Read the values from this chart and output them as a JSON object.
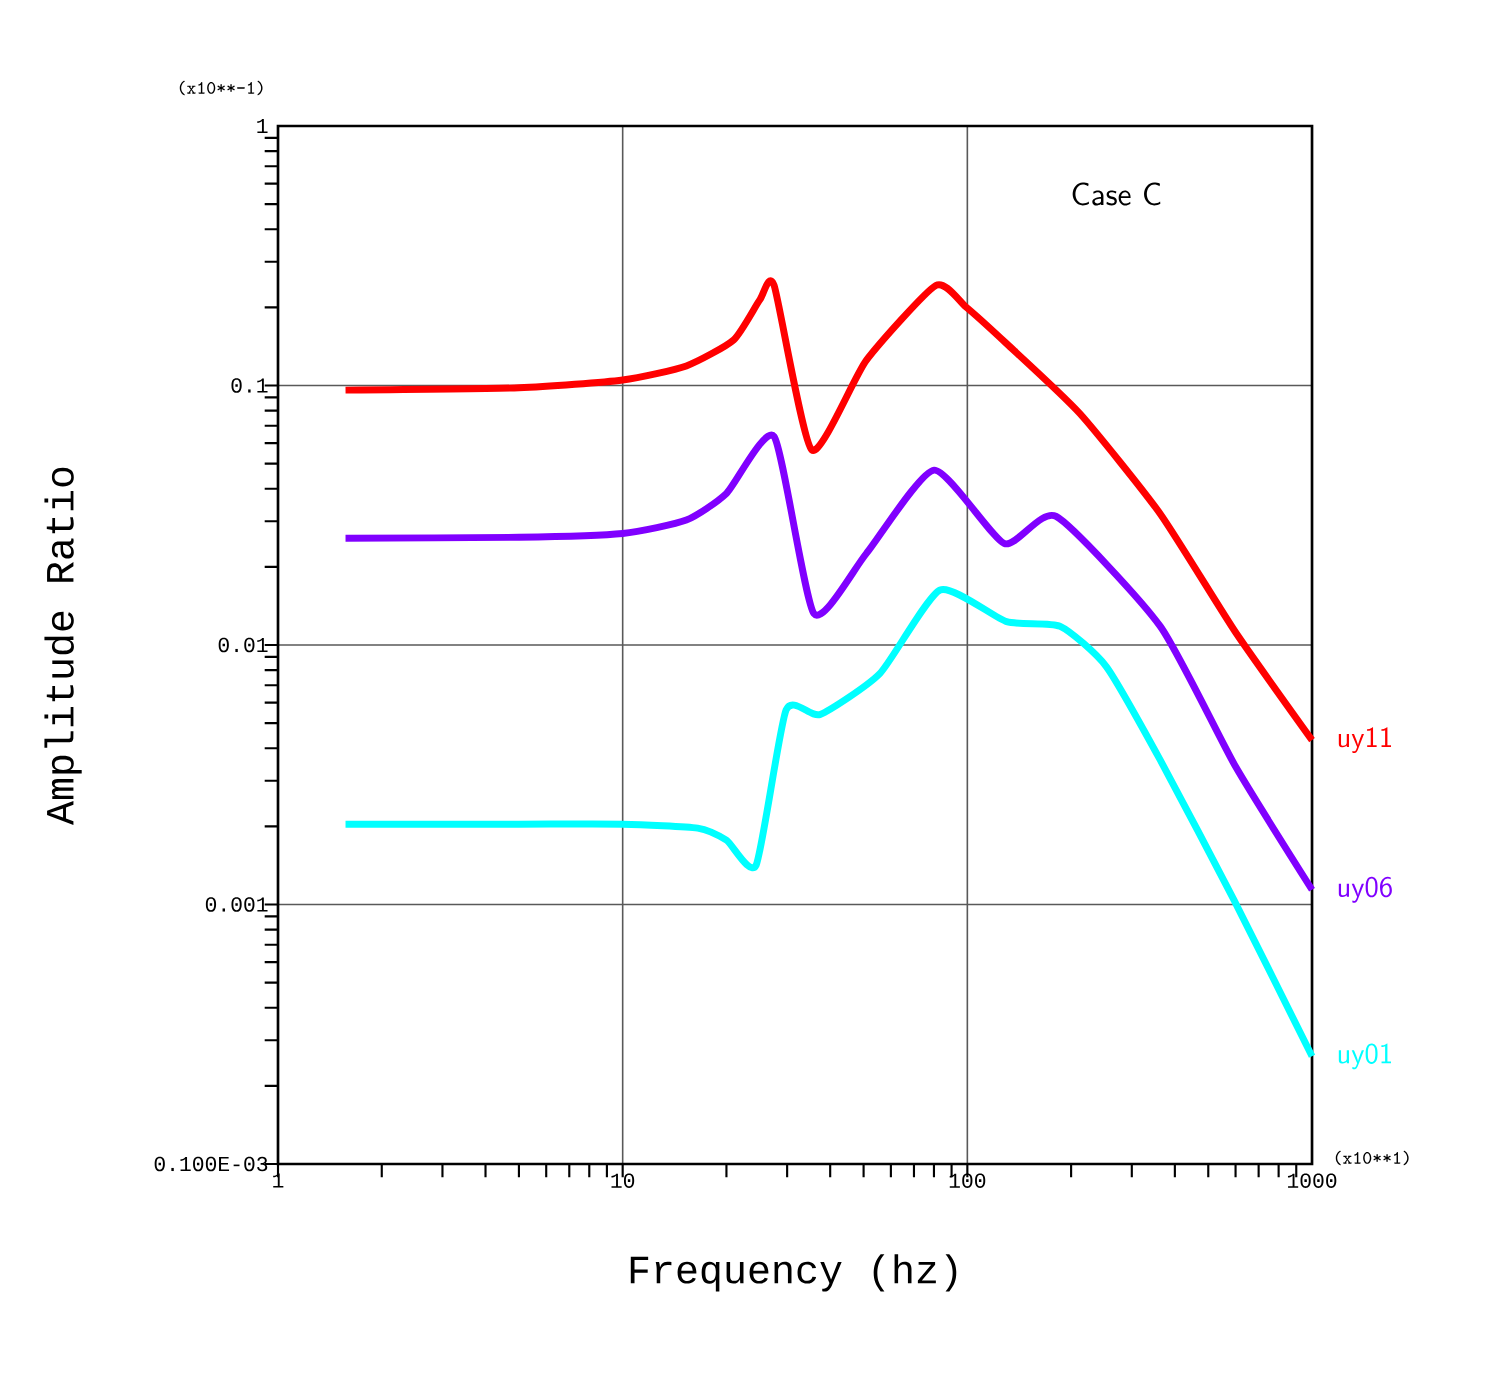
{
  "chart_data": {
    "type": "line",
    "xlabel": "Frequency (hz)",
    "ylabel": "Amplitude Ratio",
    "log": "xy",
    "xlim": [
      1,
      1000
    ],
    "xticks": [
      1,
      10,
      100,
      1000
    ],
    "ylim": [
      0.0001,
      1
    ],
    "yticks": [
      {
        "value": 0.0001,
        "label": "0.100E-03"
      },
      0.001,
      0.01,
      0.1,
      1
    ],
    "grid": true,
    "marker": "none",
    "line_style": "solid",
    "annotations": [
      "Case C",
      "(x10**-1)",
      "(x10**1)"
    ],
    "series": [
      {
        "name": "uy11",
        "color": "#ff0000",
        "x": [
          1.57,
          5,
          10,
          15.3,
          21,
          25,
          27.5,
          35.4,
          50.9,
          81,
          99,
          130,
          212,
          363,
          600,
          1000
        ],
        "values": [
          0.096,
          0.098,
          0.105,
          0.119,
          0.15,
          0.214,
          0.243,
          0.0564,
          0.125,
          0.243,
          0.201,
          0.145,
          0.078,
          0.032,
          0.0112,
          0.0043
        ]
      },
      {
        "name": "uy06",
        "color": "#8000ff",
        "x": [
          1.57,
          5,
          10,
          15.3,
          20,
          27.5,
          35.9,
          50.9,
          80.1,
          128,
          181,
          363,
          600,
          1000
        ],
        "values": [
          0.0258,
          0.026,
          0.0269,
          0.0303,
          0.0384,
          0.0636,
          0.0132,
          0.0225,
          0.0472,
          0.0246,
          0.0313,
          0.0118,
          0.0034,
          0.00114
        ]
      },
      {
        "name": "uy01",
        "color": "#00ffff",
        "x": [
          1.57,
          5,
          10,
          16.5,
          20,
          24.4,
          29.8,
          37.4,
          55.8,
          83.4,
          130,
          186,
          253,
          363,
          594,
          1000
        ],
        "values": [
          0.00204,
          0.00204,
          0.00204,
          0.00197,
          0.00177,
          0.00142,
          0.00562,
          0.0054,
          0.00778,
          0.0163,
          0.0123,
          0.0118,
          0.00826,
          0.0036,
          0.00104,
          0.00026
        ]
      }
    ]
  }
}
